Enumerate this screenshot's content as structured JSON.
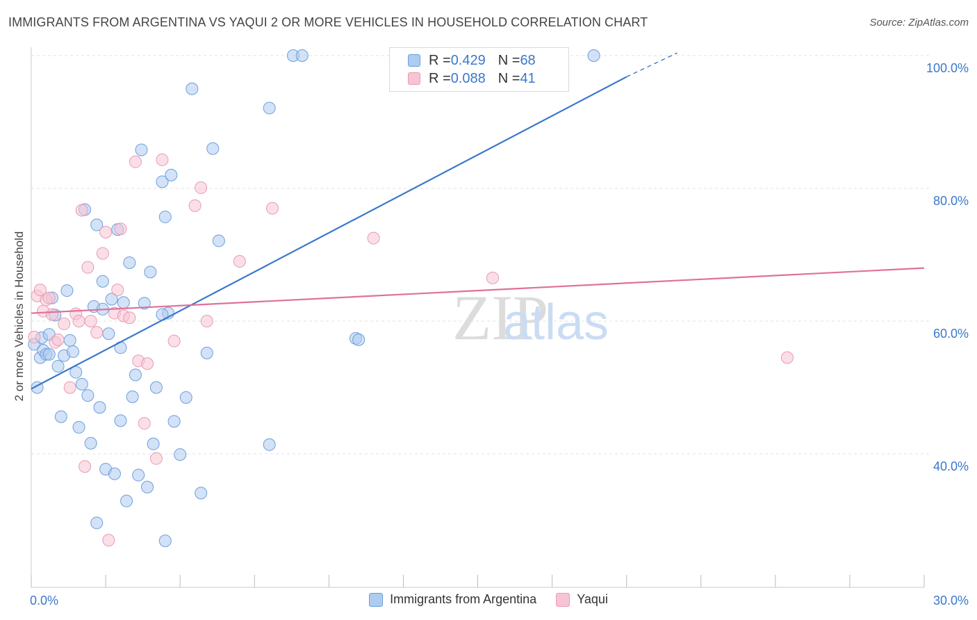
{
  "header": {
    "title": "IMMIGRANTS FROM ARGENTINA VS YAQUI 2 OR MORE VEHICLES IN HOUSEHOLD CORRELATION CHART",
    "source": "Source: ZipAtlas.com"
  },
  "watermark": {
    "zip": "ZIP",
    "atlas": "atlas"
  },
  "legend_top": {
    "rows": [
      {
        "r_label": "R = ",
        "r_value": "0.429",
        "n_label": "N = ",
        "n_value": "68"
      },
      {
        "r_label": "R = ",
        "r_value": "0.088",
        "n_label": "N = ",
        "n_value": "41"
      }
    ]
  },
  "colors": {
    "blue_fill": "#aecbf0",
    "blue_stroke": "#6b9fdc",
    "blue_line": "#3b78cc",
    "pink_fill": "#f7c4d4",
    "pink_stroke": "#e79ab3",
    "pink_line": "#e0709a",
    "tick_label": "#3a78cc",
    "grid": "#e2e2e2"
  },
  "chart_data": {
    "type": "scatter",
    "title": "IMMIGRANTS FROM ARGENTINA VS YAQUI 2 OR MORE VEHICLES IN HOUSEHOLD CORRELATION CHART",
    "xlabel": "",
    "ylabel": "2 or more Vehicles in Household",
    "xlim": [
      0,
      30
    ],
    "ylim": [
      20,
      102
    ],
    "x_tick_labels": [
      "0.0%",
      "30.0%"
    ],
    "y_ticks": [
      40,
      60,
      80,
      100
    ],
    "y_tick_labels": [
      "40.0%",
      "60.0%",
      "80.0%",
      "100.0%"
    ],
    "grid": true,
    "legend_position": "bottom",
    "series": [
      {
        "name": "Immigrants from Argentina",
        "color": "#6b9fdc",
        "trend": {
          "x": [
            0,
            20.0
          ],
          "y": [
            49.8,
            96.8
          ],
          "dashed_to": [
            21.7,
            100.4
          ]
        },
        "points": [
          [
            0.1,
            56.5
          ],
          [
            0.2,
            50.0
          ],
          [
            0.3,
            54.5
          ],
          [
            0.35,
            57.5
          ],
          [
            0.4,
            55.6
          ],
          [
            0.5,
            55.0
          ],
          [
            0.6,
            55.0
          ],
          [
            0.7,
            63.5
          ],
          [
            0.8,
            60.9
          ],
          [
            0.9,
            53.2
          ],
          [
            1.0,
            45.6
          ],
          [
            1.1,
            54.8
          ],
          [
            1.3,
            57.1
          ],
          [
            1.4,
            55.4
          ],
          [
            1.5,
            52.3
          ],
          [
            1.6,
            44.0
          ],
          [
            1.7,
            50.5
          ],
          [
            1.8,
            76.8
          ],
          [
            1.9,
            48.8
          ],
          [
            2.0,
            41.6
          ],
          [
            2.1,
            62.2
          ],
          [
            2.2,
            74.5
          ],
          [
            2.3,
            47.0
          ],
          [
            2.4,
            66.0
          ],
          [
            2.5,
            37.7
          ],
          [
            2.6,
            58.1
          ],
          [
            2.7,
            63.3
          ],
          [
            2.8,
            37.0
          ],
          [
            2.9,
            73.8
          ],
          [
            3.0,
            56.0
          ],
          [
            3.1,
            62.8
          ],
          [
            3.2,
            32.9
          ],
          [
            3.3,
            68.8
          ],
          [
            3.4,
            48.6
          ],
          [
            3.5,
            51.9
          ],
          [
            3.6,
            36.8
          ],
          [
            3.7,
            85.8
          ],
          [
            3.8,
            62.7
          ],
          [
            3.9,
            35.0
          ],
          [
            4.0,
            67.4
          ],
          [
            4.1,
            41.5
          ],
          [
            4.2,
            50.0
          ],
          [
            4.4,
            81.0
          ],
          [
            4.5,
            75.7
          ],
          [
            4.6,
            61.2
          ],
          [
            4.7,
            82.0
          ],
          [
            4.8,
            44.9
          ],
          [
            5.0,
            39.9
          ],
          [
            5.2,
            48.5
          ],
          [
            5.4,
            95.0
          ],
          [
            5.7,
            34.1
          ],
          [
            5.9,
            55.2
          ],
          [
            6.1,
            86.0
          ],
          [
            6.3,
            72.1
          ],
          [
            8.0,
            92.1
          ],
          [
            8.8,
            100.0
          ],
          [
            9.1,
            100.0
          ],
          [
            10.9,
            57.4
          ],
          [
            11.0,
            57.2
          ],
          [
            18.9,
            100.0
          ],
          [
            2.2,
            29.6
          ],
          [
            4.5,
            26.9
          ],
          [
            3.0,
            45.0
          ],
          [
            1.2,
            64.6
          ],
          [
            2.4,
            61.8
          ],
          [
            4.4,
            61.0
          ],
          [
            8.0,
            41.4
          ],
          [
            0.6,
            58.0
          ]
        ]
      },
      {
        "name": "Yaqui",
        "color": "#e79ab3",
        "trend": {
          "x": [
            0,
            30
          ],
          "y": [
            61.2,
            68.0
          ]
        },
        "points": [
          [
            0.1,
            57.6
          ],
          [
            0.2,
            63.8
          ],
          [
            0.3,
            64.7
          ],
          [
            0.4,
            61.5
          ],
          [
            0.5,
            63.2
          ],
          [
            0.6,
            63.5
          ],
          [
            0.7,
            61.0
          ],
          [
            0.8,
            56.8
          ],
          [
            0.9,
            57.2
          ],
          [
            1.1,
            59.6
          ],
          [
            1.3,
            50.0
          ],
          [
            1.5,
            61.1
          ],
          [
            1.6,
            60.0
          ],
          [
            1.7,
            76.7
          ],
          [
            1.8,
            38.1
          ],
          [
            1.9,
            68.1
          ],
          [
            2.0,
            60.0
          ],
          [
            2.2,
            58.3
          ],
          [
            2.4,
            70.2
          ],
          [
            2.5,
            73.4
          ],
          [
            2.6,
            27.0
          ],
          [
            2.8,
            61.2
          ],
          [
            2.9,
            64.7
          ],
          [
            3.0,
            73.9
          ],
          [
            3.1,
            60.8
          ],
          [
            3.3,
            60.5
          ],
          [
            3.5,
            84.0
          ],
          [
            3.6,
            54.0
          ],
          [
            3.8,
            44.6
          ],
          [
            3.9,
            53.6
          ],
          [
            4.2,
            39.3
          ],
          [
            4.4,
            84.3
          ],
          [
            4.8,
            57.0
          ],
          [
            5.5,
            77.4
          ],
          [
            5.7,
            80.1
          ],
          [
            5.9,
            60.0
          ],
          [
            7.0,
            69.0
          ],
          [
            8.1,
            77.0
          ],
          [
            11.5,
            72.5
          ],
          [
            15.5,
            66.5
          ],
          [
            25.4,
            54.5
          ]
        ]
      }
    ]
  }
}
